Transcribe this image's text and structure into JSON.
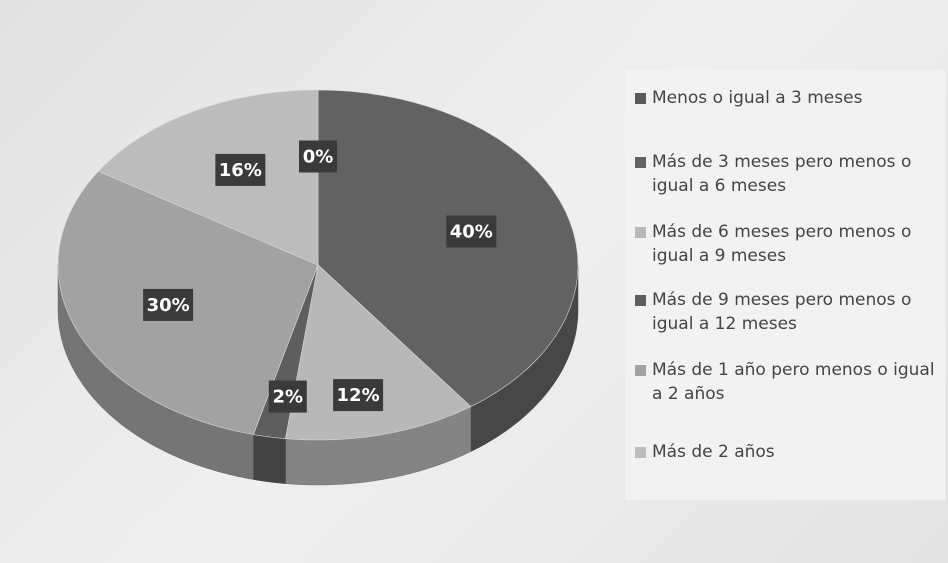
{
  "chart_data": {
    "type": "pie",
    "categories": [
      "Menos o igual a 3 meses",
      "Más de 3 meses pero menos o igual a 6 meses",
      "Más de 6 meses pero menos o igual a 9 meses",
      "Más de 9 meses pero menos o igual a 12 meses",
      "Más de 1 año pero menos o igual a 2 años",
      "Más de 2 años"
    ],
    "values": [
      0,
      40,
      12,
      2,
      30,
      16
    ],
    "value_labels": [
      "0%",
      "40%",
      "12%",
      "2%",
      "30%",
      "16%"
    ],
    "colors": [
      "#5a5a5a",
      "#626262",
      "#b8b8b8",
      "#5e5e5e",
      "#a2a2a2",
      "#bcbcbc"
    ],
    "legend": "right"
  }
}
